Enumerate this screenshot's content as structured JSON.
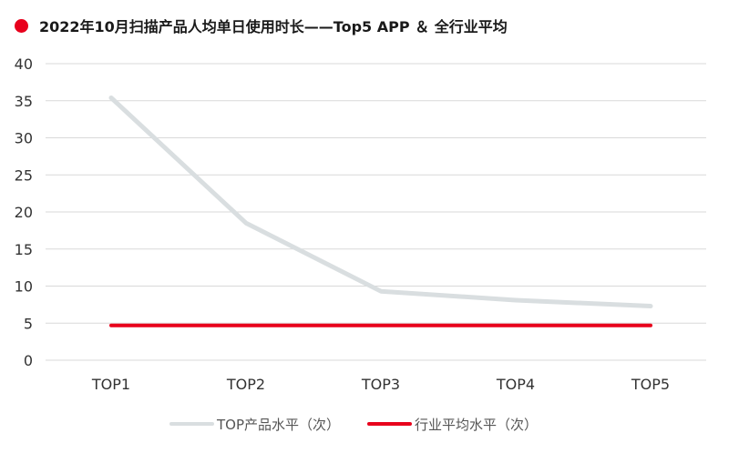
{
  "colors": {
    "accent": "#e8001c",
    "top_series": "#d9dee0",
    "avg_series": "#e8001c",
    "grid": "#d9d9d9"
  },
  "chart_data": {
    "type": "line",
    "title": "2022年10月扫描产品人均单日使用时长——Top5 APP ＆ 全行业平均",
    "categories": [
      "TOP1",
      "TOP2",
      "TOP3",
      "TOP4",
      "TOP5"
    ],
    "yticks": [
      "0",
      "5",
      "10",
      "15",
      "20",
      "25",
      "30",
      "35",
      "40"
    ],
    "ylim": [
      0,
      40
    ],
    "grid": true,
    "legend_position": "bottom",
    "series": [
      {
        "name": "TOP产品水平（次）",
        "values": [
          35.4,
          18.5,
          9.3,
          8.1,
          7.3
        ]
      },
      {
        "name": "行业平均水平（次）",
        "values": [
          4.7,
          4.7,
          4.7,
          4.7,
          4.7
        ]
      }
    ]
  }
}
